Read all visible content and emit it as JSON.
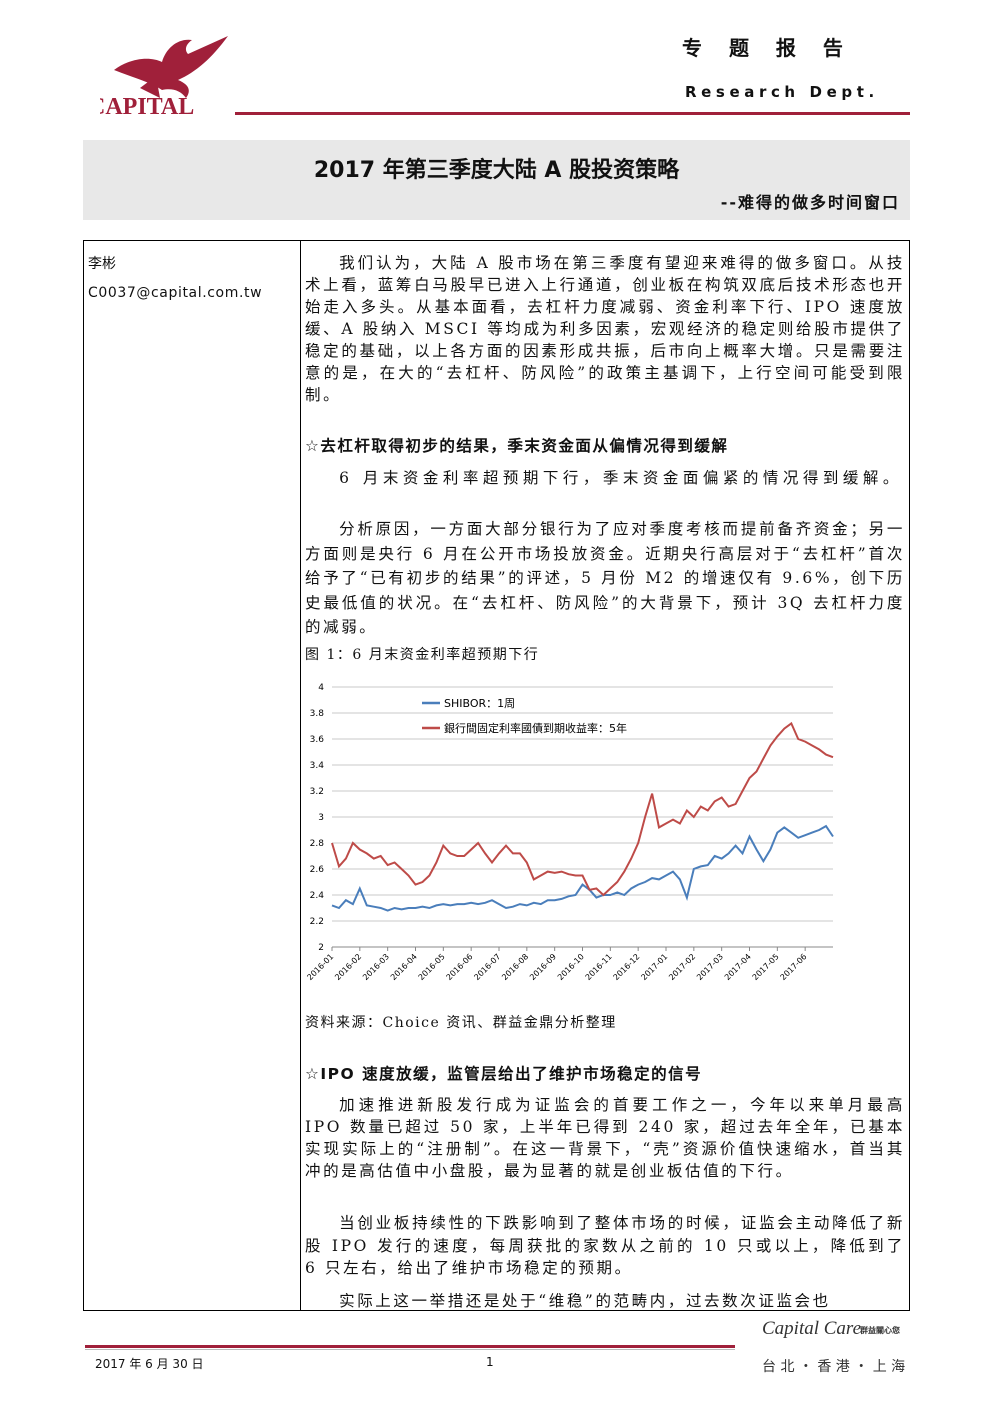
{
  "header": {
    "logo": "CAPITAL",
    "title": "专 题 报 告",
    "dept": "Research Dept."
  },
  "report": {
    "title": "2017 年第三季度大陆 A 股投资策略",
    "subtitle": "--难得的做多时间窗口"
  },
  "author": {
    "name": "李彬",
    "email": "C0037@capital.com.tw"
  },
  "intro": "我们认为，大陆 A 股市场在第三季度有望迎来难得的做多窗口。从技术上看，蓝筹白马股早已进入上行通道，创业板在构筑双底后技术形态也开始走入多头。从基本面看，去杠杆力度减弱、资金利率下行、IPO 速度放缓、A 股纳入 MSCI 等均成为利多因素，宏观经济的稳定则给股市提供了稳定的基础，以上各方面的因素形成共振，后市向上概率大增。只是需要注意的是，在大的“去杠杆、防风险”的政策主基调下，上行空间可能受到限制。",
  "section1": {
    "heading": "☆去杠杆取得初步的结果，季末资金面从偏情况得到缓解",
    "paragraphs": [
      "6 月末资金利率超预期下行，季末资金面偏紧的情况得到缓解。",
      "分析原因，一方面大部分银行为了应对季度考核而提前备齐资金；另一方面则是央行 6 月在公开市场投放资金。近期央行高层对于“去杠杆”首次给予了“已有初步的结果”的评述，5 月份 M2 的增速仅有 9.6%，创下历史最低值的状况。在“去杠杆、防风险”的大背景下，预计 3Q 去杠杆力度的减弱。"
    ]
  },
  "figure": {
    "caption": "图 1：6 月末资金利率超预期下行",
    "source": "资料来源：Choice 资讯、群益金鼎分析整理"
  },
  "chart_data": {
    "type": "line",
    "categories": [
      "2016-01",
      null,
      null,
      null,
      "2016-02",
      null,
      null,
      null,
      "2016-03",
      null,
      null,
      null,
      "2016-04",
      null,
      null,
      null,
      "2016-05",
      null,
      null,
      null,
      "2016-06",
      null,
      null,
      null,
      "2016-07",
      null,
      null,
      null,
      "2016-08",
      null,
      null,
      null,
      "2016-09",
      null,
      null,
      null,
      "2016-10",
      null,
      null,
      null,
      "2016-11",
      null,
      null,
      null,
      "2016-12",
      null,
      null,
      null,
      "2017-01",
      null,
      null,
      null,
      "2017-02",
      null,
      null,
      null,
      "2017-03",
      null,
      null,
      null,
      "2017-04",
      null,
      null,
      null,
      "2017-05",
      null,
      null,
      null,
      "2017-06",
      null,
      null,
      null,
      null
    ],
    "series": [
      {
        "name": "SHIBOR：1周",
        "color": "#4a7ebb",
        "values": [
          2.32,
          2.3,
          2.36,
          2.33,
          2.45,
          2.32,
          2.31,
          2.3,
          2.28,
          2.3,
          2.29,
          2.3,
          2.3,
          2.31,
          2.3,
          2.32,
          2.33,
          2.32,
          2.33,
          2.33,
          2.34,
          2.33,
          2.34,
          2.36,
          2.33,
          2.3,
          2.31,
          2.33,
          2.32,
          2.34,
          2.33,
          2.36,
          2.36,
          2.37,
          2.39,
          2.4,
          2.48,
          2.44,
          2.38,
          2.4,
          2.4,
          2.42,
          2.4,
          2.45,
          2.48,
          2.5,
          2.53,
          2.52,
          2.55,
          2.58,
          2.52,
          2.38,
          2.6,
          2.62,
          2.63,
          2.7,
          2.68,
          2.72,
          2.78,
          2.72,
          2.85,
          2.75,
          2.66,
          2.75,
          2.88,
          2.92,
          2.88,
          2.84,
          2.86,
          2.88,
          2.9,
          2.93,
          2.85
        ]
      },
      {
        "name": "銀行間固定利率國債到期收益率：5年",
        "color": "#be4b48",
        "values": [
          2.8,
          2.62,
          2.68,
          2.8,
          2.75,
          2.72,
          2.68,
          2.7,
          2.63,
          2.65,
          2.6,
          2.55,
          2.48,
          2.5,
          2.55,
          2.65,
          2.78,
          2.72,
          2.7,
          2.7,
          2.75,
          2.8,
          2.72,
          2.65,
          2.72,
          2.78,
          2.72,
          2.72,
          2.65,
          2.52,
          2.55,
          2.58,
          2.57,
          2.58,
          2.56,
          2.55,
          2.55,
          2.44,
          2.45,
          2.4,
          2.45,
          2.5,
          2.58,
          2.68,
          2.8,
          3.0,
          3.18,
          2.92,
          2.95,
          2.98,
          2.95,
          3.05,
          3.0,
          3.08,
          3.05,
          3.12,
          3.15,
          3.08,
          3.1,
          3.2,
          3.3,
          3.35,
          3.45,
          3.55,
          3.62,
          3.68,
          3.72,
          3.6,
          3.58,
          3.55,
          3.52,
          3.48,
          3.46
        ]
      }
    ],
    "ylim": [
      2,
      4
    ],
    "yticks": [
      2,
      2.2,
      2.4,
      2.6,
      2.8,
      3,
      3.2,
      3.4,
      3.6,
      3.8,
      4
    ],
    "grid": true,
    "legend": "top-left"
  },
  "section2": {
    "heading": "☆IPO 速度放缓，监管层给出了维护市场稳定的信号",
    "paragraphs": [
      "加速推进新股发行成为证监会的首要工作之一，今年以来单月最高 IPO 数量已超过 50 家，上半年已得到 240 家，超过去年全年，已基本实现实际上的“注册制”。在这一背景下，“壳”资源价值快速缩水，首当其冲的是高估值中小盘股，最为显著的就是创业板估值的下行。",
      "当创业板持续性的下跌影响到了整体市场的时候，证监会主动降低了新股 IPO 发行的速度，每周获批的家数从之前的 10 只或以上，降低到了 6 只左右，给出了维护市场稳定的预期。",
      "实际上这一举措还是处于“维稳”的范畴内，过去数次证监会也"
    ]
  },
  "footer": {
    "date": "2017 年 6 月 30 日",
    "page": "1",
    "brand": "Capital Care",
    "slogan": "群益關心您",
    "cities": "台 北 ・ 香 港 ・ 上 海"
  }
}
